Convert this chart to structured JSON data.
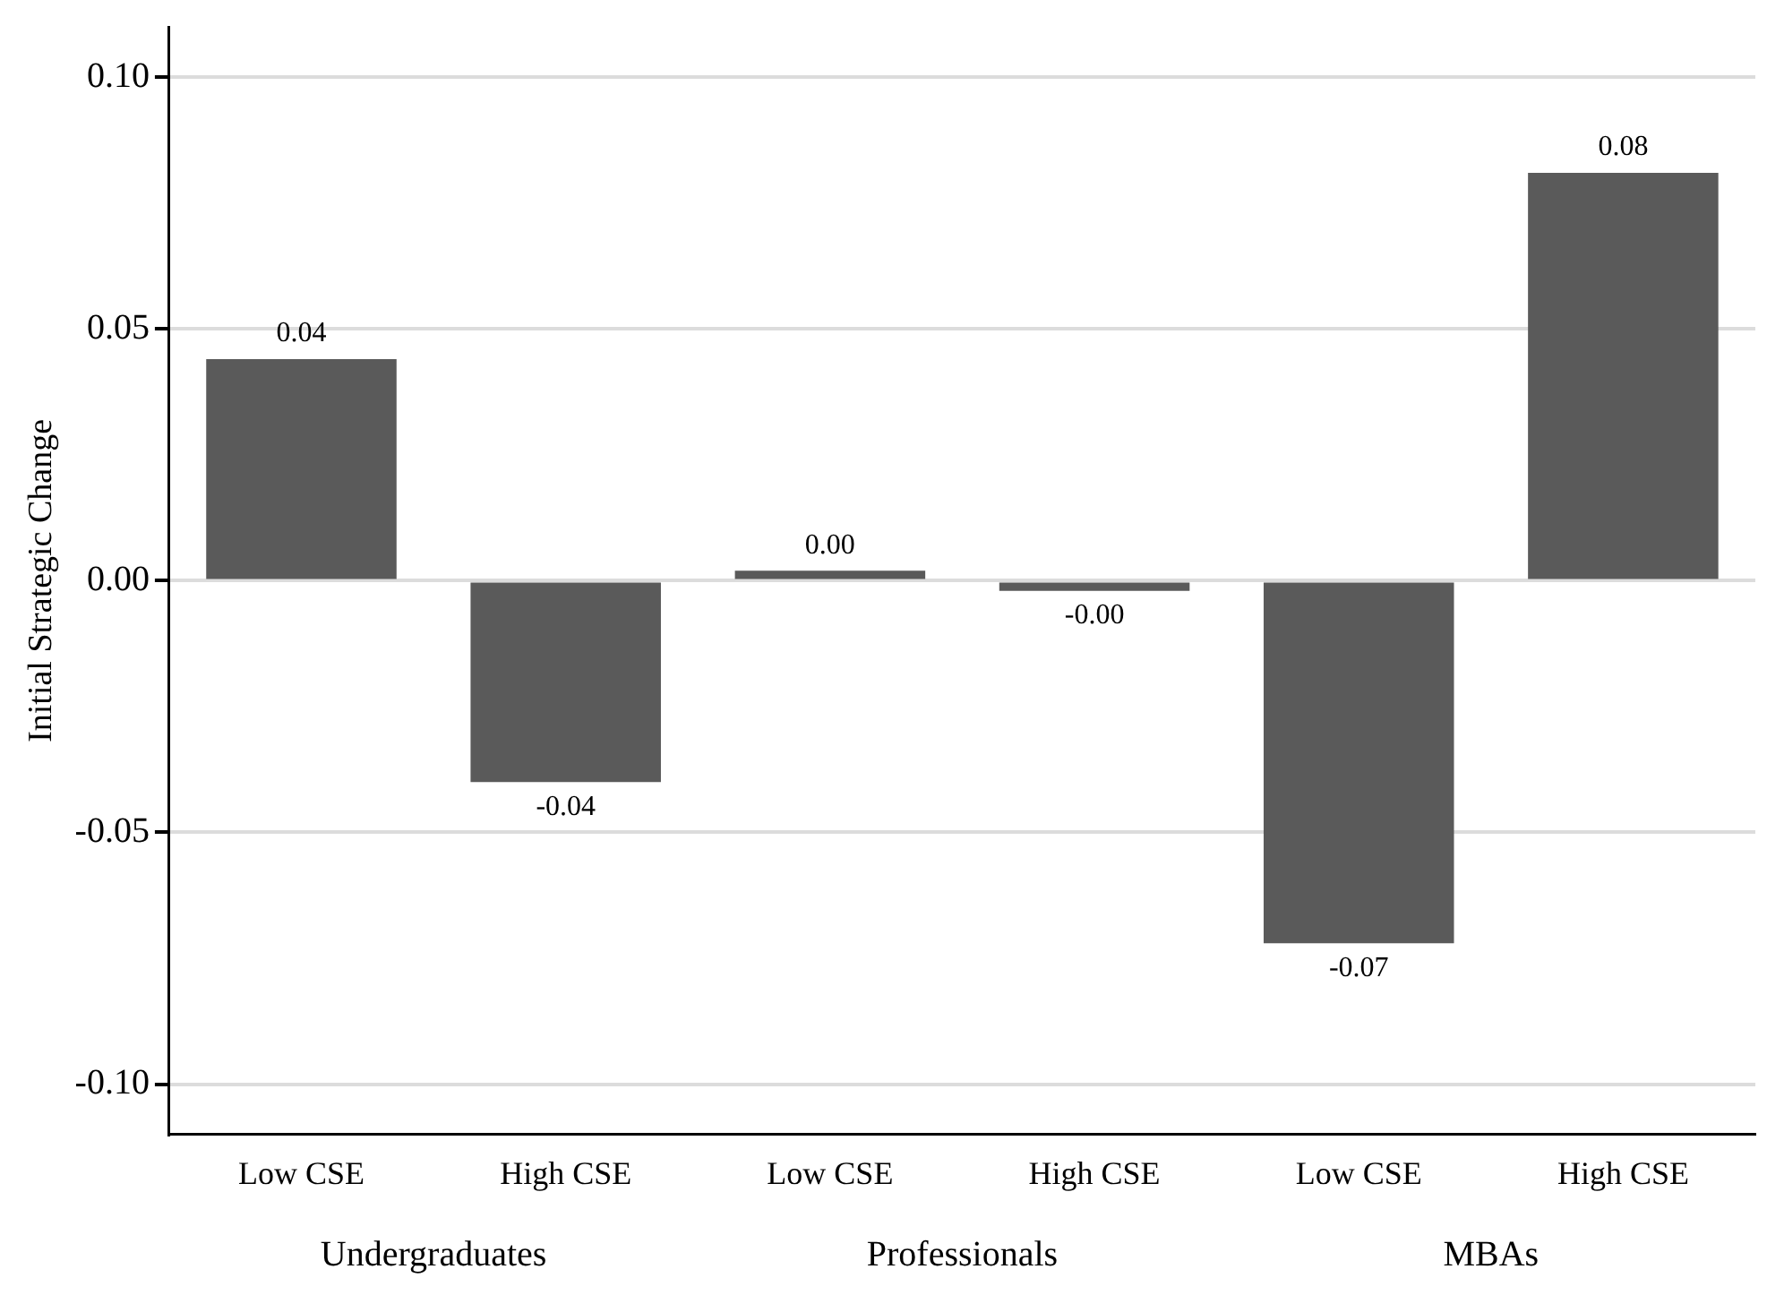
{
  "chart_data": {
    "type": "bar",
    "ylabel": "Initial Strategic Change",
    "categories": [
      "Low CSE",
      "High CSE",
      "Low CSE",
      "High CSE",
      "Low CSE",
      "High CSE"
    ],
    "values": [
      0.044,
      -0.04,
      0.002,
      -0.002,
      -0.072,
      0.081
    ],
    "value_labels": [
      "0.04",
      "-0.04",
      "0.00",
      "-0.00",
      "-0.07",
      "0.08"
    ],
    "color": "#5a5a5a",
    "annotations": [
      "Undergraduates",
      "Professionals",
      "MBAs"
    ],
    "ylim": [
      -0.11,
      0.11
    ],
    "yticks": [
      {
        "value": -0.1,
        "label": "-0.10"
      },
      {
        "value": -0.05,
        "label": "-0.05"
      },
      {
        "value": 0,
        "label": "0.00"
      },
      {
        "value": 0.05,
        "label": "0.05"
      },
      {
        "value": 0.1,
        "label": "0.10"
      }
    ],
    "grid": "y",
    "legend": false
  }
}
